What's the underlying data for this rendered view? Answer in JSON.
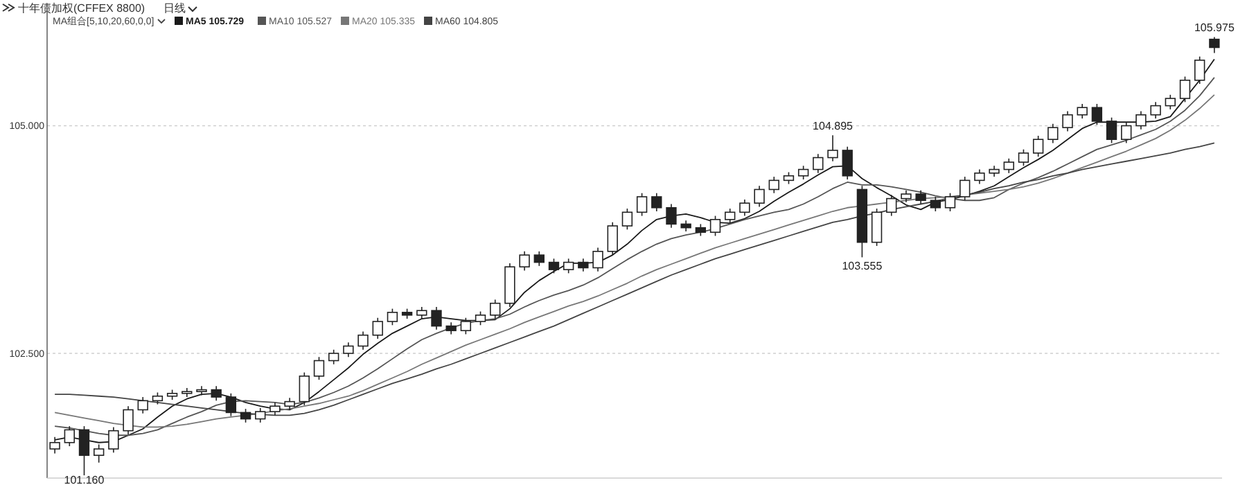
{
  "chart_data": {
    "type": "candlestick",
    "title": "十年债加权(CFFEX 8800)",
    "subtitle": "日线",
    "annotations": [
      "MA组合[5,10,20,60,0,0]",
      {
        "text": "104.895",
        "y": 104.895
      },
      {
        "text": "103.555",
        "y": 103.555
      },
      {
        "text": "105.975",
        "y": 105.975
      },
      {
        "text": "101.160",
        "y": 101.16
      }
    ],
    "categories": [
      null,
      null,
      null,
      null,
      null,
      null,
      null,
      null,
      null,
      null,
      null,
      null,
      null,
      null,
      null,
      null,
      null,
      null,
      null,
      null,
      null,
      null,
      null,
      null,
      null,
      null,
      null,
      null,
      null,
      null,
      null,
      null,
      null,
      null,
      null,
      null,
      null,
      null,
      null,
      null,
      null,
      null,
      null,
      null,
      null,
      null,
      null,
      null,
      null,
      null,
      null,
      null,
      null,
      null,
      null,
      null,
      null,
      null,
      null,
      null,
      null,
      null,
      null,
      null,
      null,
      null,
      null,
      null,
      null,
      null,
      null,
      null,
      null,
      null,
      null,
      null,
      null,
      null,
      null,
      null
    ],
    "ohlc": [
      [
        101.45,
        101.58,
        101.4,
        101.52
      ],
      [
        101.52,
        101.7,
        101.48,
        101.66
      ],
      [
        101.66,
        101.7,
        101.16,
        101.38
      ],
      [
        101.38,
        101.5,
        101.3,
        101.45
      ],
      [
        101.45,
        101.69,
        101.41,
        101.65
      ],
      [
        101.65,
        101.92,
        101.61,
        101.88
      ],
      [
        101.88,
        102.02,
        101.84,
        101.98
      ],
      [
        101.98,
        102.07,
        101.94,
        102.03
      ],
      [
        102.03,
        102.1,
        101.99,
        102.06
      ],
      [
        102.06,
        102.12,
        102.02,
        102.08
      ],
      [
        102.08,
        102.14,
        102.04,
        102.1
      ],
      [
        102.1,
        102.14,
        101.98,
        102.02
      ],
      [
        102.02,
        102.06,
        101.81,
        101.85
      ],
      [
        101.85,
        101.89,
        101.74,
        101.78
      ],
      [
        101.78,
        101.9,
        101.74,
        101.86
      ],
      [
        101.86,
        101.96,
        101.82,
        101.92
      ],
      [
        101.92,
        102.01,
        101.88,
        101.97
      ],
      [
        101.97,
        102.29,
        101.93,
        102.25
      ],
      [
        102.25,
        102.46,
        102.21,
        102.42
      ],
      [
        102.42,
        102.54,
        102.38,
        102.5
      ],
      [
        102.5,
        102.62,
        102.46,
        102.58
      ],
      [
        102.58,
        102.74,
        102.54,
        102.7
      ],
      [
        102.7,
        102.89,
        102.66,
        102.85
      ],
      [
        102.85,
        102.99,
        102.81,
        102.95
      ],
      [
        102.95,
        102.99,
        102.88,
        102.92
      ],
      [
        102.92,
        103.01,
        102.88,
        102.97
      ],
      [
        102.97,
        103.01,
        102.76,
        102.8
      ],
      [
        102.8,
        102.84,
        102.71,
        102.75
      ],
      [
        102.75,
        102.89,
        102.71,
        102.85
      ],
      [
        102.85,
        102.96,
        102.81,
        102.92
      ],
      [
        102.92,
        103.09,
        102.88,
        103.05
      ],
      [
        103.05,
        103.49,
        103.01,
        103.45
      ],
      [
        103.45,
        103.62,
        103.41,
        103.58
      ],
      [
        103.58,
        103.62,
        103.46,
        103.5
      ],
      [
        103.5,
        103.54,
        103.38,
        103.42
      ],
      [
        103.42,
        103.54,
        103.38,
        103.5
      ],
      [
        103.5,
        103.54,
        103.4,
        103.44
      ],
      [
        103.44,
        103.66,
        103.4,
        103.62
      ],
      [
        103.62,
        103.94,
        103.58,
        103.9
      ],
      [
        103.9,
        104.09,
        103.86,
        104.05
      ],
      [
        104.05,
        104.26,
        104.01,
        104.22
      ],
      [
        104.22,
        104.26,
        104.06,
        104.1
      ],
      [
        104.1,
        104.14,
        103.88,
        103.92
      ],
      [
        103.92,
        103.96,
        103.84,
        103.88
      ],
      [
        103.88,
        103.92,
        103.79,
        103.83
      ],
      [
        103.83,
        104.01,
        103.79,
        103.97
      ],
      [
        103.97,
        104.09,
        103.93,
        104.05
      ],
      [
        104.05,
        104.19,
        104.01,
        104.15
      ],
      [
        104.15,
        104.34,
        104.11,
        104.3
      ],
      [
        104.3,
        104.44,
        104.26,
        104.4
      ],
      [
        104.4,
        104.49,
        104.36,
        104.45
      ],
      [
        104.45,
        104.56,
        104.41,
        104.52
      ],
      [
        104.52,
        104.69,
        104.48,
        104.65
      ],
      [
        104.65,
        104.895,
        104.61,
        104.73
      ],
      [
        104.73,
        104.77,
        104.41,
        104.45
      ],
      [
        104.3,
        104.34,
        103.555,
        103.72
      ],
      [
        103.72,
        104.09,
        103.68,
        104.05
      ],
      [
        104.05,
        104.24,
        104.01,
        104.2
      ],
      [
        104.2,
        104.29,
        104.16,
        104.25
      ],
      [
        104.25,
        104.29,
        104.14,
        104.18
      ],
      [
        104.18,
        104.22,
        104.06,
        104.1
      ],
      [
        104.1,
        104.26,
        104.06,
        104.22
      ],
      [
        104.22,
        104.44,
        104.18,
        104.4
      ],
      [
        104.4,
        104.52,
        104.36,
        104.48
      ],
      [
        104.48,
        104.56,
        104.44,
        104.52
      ],
      [
        104.52,
        104.64,
        104.48,
        104.6
      ],
      [
        104.6,
        104.74,
        104.56,
        104.7
      ],
      [
        104.7,
        104.89,
        104.66,
        104.85
      ],
      [
        104.85,
        105.02,
        104.81,
        104.98
      ],
      [
        104.98,
        105.16,
        104.94,
        105.12
      ],
      [
        105.12,
        105.24,
        105.08,
        105.2
      ],
      [
        105.2,
        105.24,
        105.01,
        105.05
      ],
      [
        105.05,
        105.09,
        104.81,
        104.85
      ],
      [
        104.85,
        105.04,
        104.81,
        105.0
      ],
      [
        105.0,
        105.16,
        104.96,
        105.12
      ],
      [
        105.12,
        105.26,
        105.08,
        105.22
      ],
      [
        105.22,
        105.34,
        105.18,
        105.3
      ],
      [
        105.3,
        105.54,
        105.26,
        105.5
      ],
      [
        105.5,
        105.76,
        105.46,
        105.72
      ],
      [
        105.95,
        105.975,
        105.8,
        105.86
      ]
    ],
    "color": "#222222",
    "series": [
      {
        "type": "line",
        "name": "MA5 105.729",
        "color": "#1a1a1a",
        "values": [
          101.55,
          101.58,
          101.55,
          101.52,
          101.53,
          101.6,
          101.67,
          101.8,
          101.92,
          102.0,
          102.05,
          102.06,
          102.02,
          101.96,
          101.92,
          101.89,
          101.88,
          101.96,
          102.08,
          102.21,
          102.34,
          102.49,
          102.61,
          102.72,
          102.8,
          102.88,
          102.9,
          102.88,
          102.86,
          102.86,
          102.87,
          102.99,
          103.17,
          103.3,
          103.4,
          103.49,
          103.49,
          103.5,
          103.58,
          103.7,
          103.85,
          103.97,
          104.01,
          104.03,
          103.99,
          103.94,
          103.93,
          103.98,
          104.06,
          104.17,
          104.27,
          104.36,
          104.46,
          104.55,
          104.56,
          104.42,
          104.32,
          104.23,
          104.13,
          104.08,
          104.16,
          104.19,
          104.23,
          104.28,
          104.34,
          104.44,
          104.54,
          104.63,
          104.73,
          104.85,
          104.97,
          105.04,
          105.04,
          105.04,
          105.04,
          105.05,
          105.1,
          105.3,
          105.5,
          105.73
        ]
      },
      {
        "type": "line",
        "name": "MA10 105.527",
        "color": "#555555",
        "values": [
          101.7,
          101.68,
          101.65,
          101.62,
          101.6,
          101.6,
          101.62,
          101.66,
          101.73,
          101.8,
          101.86,
          101.93,
          101.97,
          101.98,
          101.97,
          101.96,
          101.94,
          101.96,
          102.01,
          102.07,
          102.14,
          102.23,
          102.33,
          102.44,
          102.55,
          102.65,
          102.72,
          102.78,
          102.83,
          102.86,
          102.88,
          102.93,
          103.01,
          103.08,
          103.14,
          103.19,
          103.25,
          103.33,
          103.43,
          103.53,
          103.62,
          103.7,
          103.76,
          103.8,
          103.83,
          103.87,
          103.92,
          103.97,
          104.01,
          104.05,
          104.08,
          104.14,
          104.22,
          104.31,
          104.38,
          104.35,
          104.35,
          104.33,
          104.3,
          104.27,
          104.23,
          104.2,
          104.18,
          104.18,
          104.21,
          104.3,
          104.37,
          104.43,
          104.5,
          104.58,
          104.66,
          104.74,
          104.79,
          104.84,
          104.9,
          104.96,
          105.05,
          105.17,
          105.33,
          105.53
        ]
      },
      {
        "type": "line",
        "name": "MA20 105.335",
        "color": "#777777",
        "values": [
          101.85,
          101.82,
          101.79,
          101.76,
          101.73,
          101.71,
          101.69,
          101.69,
          101.7,
          101.72,
          101.75,
          101.78,
          101.8,
          101.82,
          101.84,
          101.87,
          101.89,
          101.92,
          101.95,
          101.99,
          102.03,
          102.09,
          102.16,
          102.23,
          102.3,
          102.38,
          102.45,
          102.52,
          102.59,
          102.65,
          102.71,
          102.77,
          102.84,
          102.9,
          102.96,
          103.02,
          103.07,
          103.13,
          103.2,
          103.27,
          103.35,
          103.42,
          103.48,
          103.54,
          103.6,
          103.66,
          103.71,
          103.76,
          103.81,
          103.86,
          103.91,
          103.96,
          104.01,
          104.06,
          104.1,
          104.12,
          104.14,
          104.16,
          104.18,
          104.2,
          104.21,
          104.22,
          104.24,
          104.26,
          104.28,
          104.3,
          104.33,
          104.37,
          104.42,
          104.48,
          104.54,
          104.6,
          104.66,
          104.72,
          104.79,
          104.86,
          104.95,
          105.06,
          105.19,
          105.34
        ]
      },
      {
        "type": "line",
        "name": "MA60 104.805",
        "color": "#444444",
        "values": [
          102.05,
          102.05,
          102.04,
          102.03,
          102.02,
          102.0,
          101.98,
          101.96,
          101.94,
          101.92,
          101.9,
          101.88,
          101.86,
          101.84,
          101.83,
          101.82,
          101.82,
          101.84,
          101.88,
          101.93,
          101.99,
          102.05,
          102.11,
          102.17,
          102.22,
          102.27,
          102.33,
          102.38,
          102.44,
          102.5,
          102.56,
          102.62,
          102.68,
          102.74,
          102.8,
          102.87,
          102.94,
          103.01,
          103.08,
          103.15,
          103.22,
          103.29,
          103.36,
          103.42,
          103.48,
          103.54,
          103.59,
          103.64,
          103.69,
          103.74,
          103.79,
          103.84,
          103.89,
          103.94,
          103.97,
          104.01,
          104.04,
          104.08,
          104.11,
          104.14,
          104.17,
          104.21,
          104.24,
          104.27,
          104.31,
          104.34,
          104.38,
          104.41,
          104.45,
          104.48,
          104.52,
          104.55,
          104.58,
          104.61,
          104.64,
          104.67,
          104.7,
          104.74,
          104.77,
          104.81
        ]
      }
    ],
    "ylim": [
      101.13,
      106.29
    ],
    "yticks": [
      {
        "value": 105,
        "label": "105.000"
      },
      {
        "value": 102.5,
        "label": "102.500"
      }
    ],
    "grid": "y",
    "legend": "top left",
    "tick_labels": "y"
  }
}
